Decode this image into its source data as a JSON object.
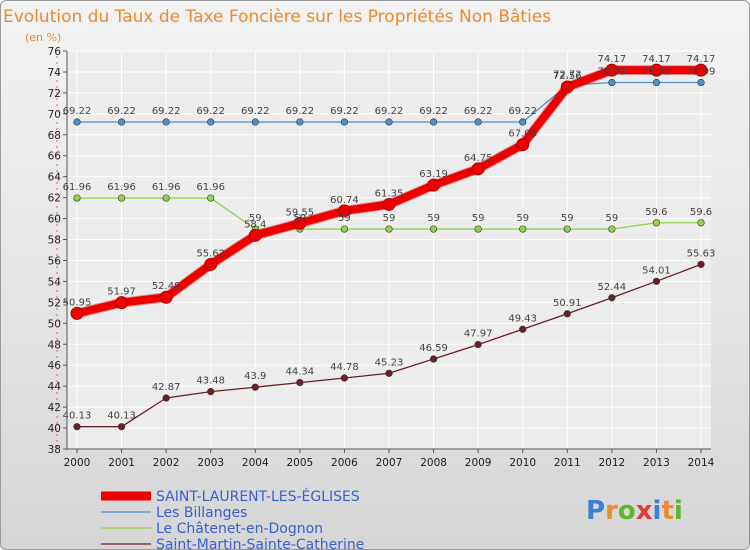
{
  "chart_data": {
    "type": "line",
    "title": "Evolution du Taux de Taxe Foncière sur les Propriétés Non Bâties",
    "subtitle": "(en %)",
    "x": [
      "2000",
      "2001",
      "2002",
      "2003",
      "2004",
      "2005",
      "2006",
      "2007",
      "2008",
      "2009",
      "2010",
      "2011",
      "2012",
      "2013",
      "2014"
    ],
    "ylim": [
      38,
      76
    ],
    "ytick_step": 2,
    "grid": true,
    "legend_position": "bottom-left",
    "series": [
      {
        "name": "SAINT-LAURENT-LES-ÉGLISES",
        "color": "#ee0000",
        "style": "thick",
        "values": [
          50.95,
          51.97,
          52.49,
          55.62,
          58.4,
          59.55,
          60.74,
          61.35,
          63.19,
          64.75,
          67.06,
          72.56,
          74.17,
          74.17,
          74.17
        ],
        "labels": [
          "50.95",
          "51.97",
          "52.49",
          "55.62",
          "58.4",
          "59.55",
          "60.74",
          "61.35",
          "63.19",
          "64.75",
          "67.06",
          "72.56",
          "74.17",
          "74.17",
          "74.17"
        ]
      },
      {
        "name": "Les Billanges",
        "color": "#4f8fca",
        "style": "thin",
        "values": [
          69.22,
          69.22,
          69.22,
          69.22,
          69.22,
          69.22,
          69.22,
          69.22,
          69.22,
          69.22,
          69.22,
          72.72,
          72.99,
          72.99,
          72.99
        ],
        "labels": [
          "69.22",
          "69.22",
          "69.22",
          "69.22",
          "69.22",
          "69.22",
          "69.22",
          "69.22",
          "69.22",
          "69.22",
          "69.22",
          "72.72",
          "72.99",
          "72.99",
          "72.99"
        ]
      },
      {
        "name": "Le Châtenet-en-Dognon",
        "color": "#8fd44a",
        "style": "thin",
        "values": [
          61.96,
          61.96,
          61.96,
          61.96,
          59,
          59,
          59,
          59,
          59,
          59,
          59,
          59,
          59,
          59.6,
          59.6
        ],
        "labels": [
          "61.96",
          "61.96",
          "61.96",
          "61.96",
          "59",
          "59",
          "59",
          "59",
          "59",
          "59",
          "59",
          "59",
          "59",
          "59.6",
          "59.6"
        ]
      },
      {
        "name": "Saint-Martin-Sainte-Catherine",
        "color": "#6b1f24",
        "style": "thin",
        "values": [
          40.13,
          40.13,
          42.87,
          43.48,
          43.9,
          44.34,
          44.78,
          45.23,
          46.59,
          47.97,
          49.43,
          50.91,
          52.44,
          54.01,
          55.63
        ],
        "labels": [
          "40.13",
          "40.13",
          "42.87",
          "43.48",
          "43.9",
          "44.34",
          "44.78",
          "45.23",
          "46.59",
          "47.97",
          "49.43",
          "50.91",
          "52.44",
          "54.01",
          "55.63"
        ]
      }
    ]
  },
  "logo": {
    "text": "Proxiti"
  }
}
